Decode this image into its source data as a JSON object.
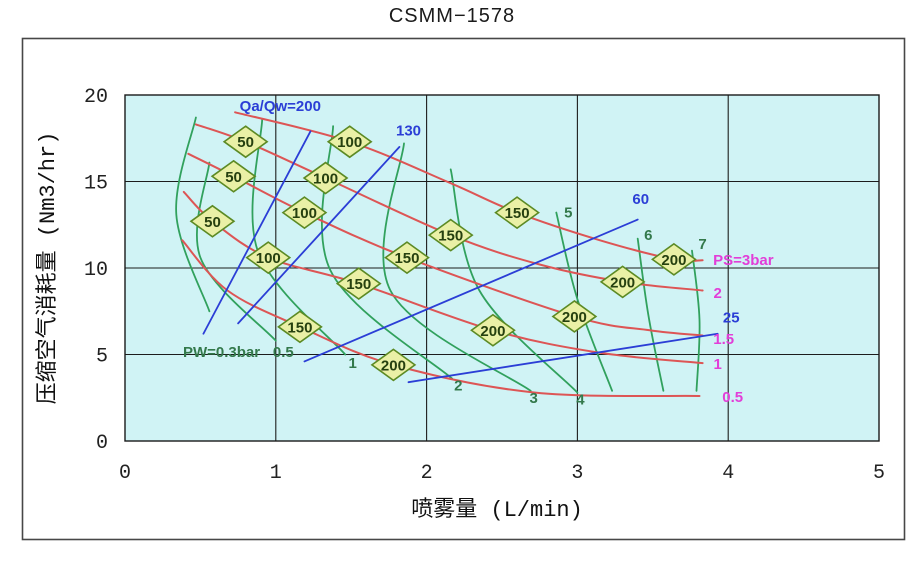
{
  "chart_data": {
    "type": "line",
    "title": "CSMM−1578",
    "xlabel": "喷雾量 (L/min)",
    "ylabel": "压缩空气消耗量 (Nm3/hr)",
    "xlim": [
      0,
      5
    ],
    "ylim": [
      0,
      20
    ],
    "x_ticks": [
      "0",
      "1",
      "2",
      "3",
      "4",
      "5"
    ],
    "y_ticks": [
      "0",
      "5",
      "10",
      "15",
      "20"
    ],
    "grid": true,
    "legend_position": "none",
    "colors": {
      "plot_bg": "#d0f3f5",
      "grid": "#1c1c1c",
      "red": "#dd5555",
      "green": "#31a15d",
      "blue": "#2b3ed6",
      "magenta": "#e23ed8",
      "green_text": "#33794b",
      "marker_fill": "#eaf0a6",
      "marker_stroke": "#5c8a24",
      "marker_text": "#26400f"
    },
    "series": [
      {
        "group": "air-pressure",
        "label": "PS=3bar",
        "color": "red",
        "points": [
          [
            0.73,
            19.0
          ],
          [
            1.49,
            17.3
          ],
          [
            2.16,
            14.9
          ],
          [
            2.6,
            13.2
          ],
          [
            3.15,
            11.6
          ],
          [
            3.64,
            10.5
          ],
          [
            3.83,
            10.45
          ]
        ]
      },
      {
        "group": "air-pressure",
        "label": "PS=2bar",
        "color": "red",
        "points": [
          [
            0.47,
            18.3
          ],
          [
            0.8,
            17.3
          ],
          [
            1.33,
            15.2
          ],
          [
            2.16,
            11.9
          ],
          [
            2.75,
            10.2
          ],
          [
            3.3,
            9.2
          ],
          [
            3.83,
            8.7
          ]
        ]
      },
      {
        "group": "air-pressure",
        "label": "PS=1.5bar",
        "color": "red",
        "points": [
          [
            0.42,
            16.6
          ],
          [
            0.72,
            15.3
          ],
          [
            1.19,
            13.2
          ],
          [
            1.87,
            10.6
          ],
          [
            2.98,
            7.2
          ],
          [
            3.48,
            6.4
          ],
          [
            3.83,
            6.1
          ]
        ]
      },
      {
        "group": "air-pressure",
        "label": "PS=1bar",
        "color": "red",
        "points": [
          [
            0.39,
            14.4
          ],
          [
            0.58,
            12.7
          ],
          [
            0.95,
            10.6
          ],
          [
            1.55,
            9.1
          ],
          [
            2.44,
            6.4
          ],
          [
            3.15,
            5.1
          ],
          [
            3.83,
            4.5
          ]
        ]
      },
      {
        "group": "air-pressure",
        "label": "PS=0.5bar",
        "color": "red",
        "points": [
          [
            0.38,
            11.6
          ],
          [
            0.68,
            8.7
          ],
          [
            1.16,
            6.6
          ],
          [
            1.78,
            4.4
          ],
          [
            2.72,
            2.8
          ],
          [
            3.81,
            2.6
          ]
        ]
      },
      {
        "group": "water-pressure",
        "label": "PW=0.3bar",
        "color": "green",
        "points": [
          [
            0.47,
            18.7
          ],
          [
            0.34,
            13.1
          ],
          [
            0.56,
            7.5
          ]
        ]
      },
      {
        "group": "water-pressure",
        "label": "PW=0.5bar",
        "color": "green",
        "points": [
          [
            0.56,
            16.1
          ],
          [
            0.5,
            10.6
          ],
          [
            1.0,
            5.8
          ]
        ]
      },
      {
        "group": "water-pressure",
        "label": "PW=1bar",
        "color": "green",
        "points": [
          [
            0.91,
            18.6
          ],
          [
            0.88,
            11.0
          ],
          [
            1.46,
            5.0
          ]
        ]
      },
      {
        "group": "water-pressure",
        "label": "PW=2bar",
        "color": "green",
        "points": [
          [
            1.38,
            18.2
          ],
          [
            1.36,
            9.9
          ],
          [
            2.17,
            3.6
          ]
        ]
      },
      {
        "group": "water-pressure",
        "label": "PW=3bar",
        "color": "green",
        "points": [
          [
            1.85,
            17.2
          ],
          [
            1.76,
            8.7
          ],
          [
            2.69,
            2.9
          ]
        ]
      },
      {
        "group": "water-pressure",
        "label": "PW=4bar",
        "color": "green",
        "points": [
          [
            2.16,
            15.7
          ],
          [
            2.35,
            8.7
          ],
          [
            3.0,
            2.8
          ]
        ]
      },
      {
        "group": "water-pressure",
        "label": "PW=5bar",
        "color": "green",
        "points": [
          [
            2.86,
            13.2
          ],
          [
            3.0,
            8.2
          ],
          [
            3.23,
            2.9
          ]
        ]
      },
      {
        "group": "water-pressure",
        "label": "PW=6bar",
        "color": "green",
        "points": [
          [
            3.4,
            11.7
          ],
          [
            3.47,
            7.3
          ],
          [
            3.57,
            2.9
          ]
        ]
      },
      {
        "group": "water-pressure",
        "label": "PW=7bar",
        "color": "green",
        "points": [
          [
            3.76,
            11.0
          ],
          [
            3.81,
            7.0
          ],
          [
            3.79,
            2.9
          ]
        ]
      },
      {
        "group": "air-water-ratio",
        "label": "Qa/Qw=200",
        "color": "blue",
        "points": [
          [
            0.52,
            6.2
          ],
          [
            1.23,
            17.9
          ]
        ]
      },
      {
        "group": "air-water-ratio",
        "label": "Qa/Qw=130",
        "color": "blue",
        "points": [
          [
            0.75,
            6.8
          ],
          [
            1.82,
            17.0
          ]
        ]
      },
      {
        "group": "air-water-ratio",
        "label": "Qa/Qw=60",
        "color": "blue",
        "points": [
          [
            1.19,
            4.6
          ],
          [
            3.4,
            12.8
          ]
        ]
      },
      {
        "group": "air-water-ratio",
        "label": "Qa/Qw=25",
        "color": "blue",
        "points": [
          [
            1.88,
            3.4
          ],
          [
            3.93,
            6.2
          ]
        ]
      }
    ],
    "markers": [
      {
        "value": "50",
        "x": 0.8,
        "y": 17.3
      },
      {
        "value": "50",
        "x": 0.72,
        "y": 15.3
      },
      {
        "value": "50",
        "x": 0.58,
        "y": 12.7
      },
      {
        "value": "100",
        "x": 1.49,
        "y": 17.3
      },
      {
        "value": "100",
        "x": 1.33,
        "y": 15.2
      },
      {
        "value": "100",
        "x": 1.19,
        "y": 13.2
      },
      {
        "value": "100",
        "x": 0.95,
        "y": 10.6
      },
      {
        "value": "150",
        "x": 2.6,
        "y": 13.2
      },
      {
        "value": "150",
        "x": 2.16,
        "y": 11.9
      },
      {
        "value": "150",
        "x": 1.87,
        "y": 10.6
      },
      {
        "value": "150",
        "x": 1.55,
        "y": 9.1
      },
      {
        "value": "150",
        "x": 1.16,
        "y": 6.6
      },
      {
        "value": "200",
        "x": 3.64,
        "y": 10.5
      },
      {
        "value": "200",
        "x": 3.3,
        "y": 9.2
      },
      {
        "value": "200",
        "x": 2.98,
        "y": 7.2
      },
      {
        "value": "200",
        "x": 2.44,
        "y": 6.4
      },
      {
        "value": "200",
        "x": 1.78,
        "y": 4.4
      }
    ],
    "annotations": [
      {
        "text": "Qa/Qw=200",
        "x": 1.03,
        "y": 19.35,
        "color": "blue",
        "anchor": "middle"
      },
      {
        "text": "130",
        "x": 1.88,
        "y": 17.95,
        "color": "blue",
        "anchor": "middle"
      },
      {
        "text": "60",
        "x": 3.42,
        "y": 14.0,
        "color": "blue",
        "anchor": "middle"
      },
      {
        "text": "25",
        "x": 4.02,
        "y": 7.15,
        "color": "blue",
        "anchor": "middle"
      },
      {
        "text": "PS=3bar",
        "x": 3.9,
        "y": 10.45,
        "color": "magenta",
        "anchor": "start"
      },
      {
        "text": "2",
        "x": 3.93,
        "y": 8.55,
        "color": "magenta",
        "anchor": "middle"
      },
      {
        "text": "1.5",
        "x": 3.97,
        "y": 5.9,
        "color": "magenta",
        "anchor": "middle"
      },
      {
        "text": "1",
        "x": 3.93,
        "y": 4.45,
        "color": "magenta",
        "anchor": "middle"
      },
      {
        "text": "0.5",
        "x": 4.03,
        "y": 2.55,
        "color": "magenta",
        "anchor": "middle"
      },
      {
        "text": "PW=0.3bar",
        "x": 0.64,
        "y": 5.15,
        "color": "green_text",
        "anchor": "middle"
      },
      {
        "text": "0.5",
        "x": 1.05,
        "y": 5.15,
        "color": "green_text",
        "anchor": "middle"
      },
      {
        "text": "1",
        "x": 1.51,
        "y": 4.5,
        "color": "green_text",
        "anchor": "middle"
      },
      {
        "text": "2",
        "x": 2.21,
        "y": 3.2,
        "color": "green_text",
        "anchor": "middle"
      },
      {
        "text": "3",
        "x": 2.71,
        "y": 2.5,
        "color": "green_text",
        "anchor": "middle"
      },
      {
        "text": "4",
        "x": 3.02,
        "y": 2.4,
        "color": "green_text",
        "anchor": "middle"
      },
      {
        "text": "5",
        "x": 2.94,
        "y": 13.2,
        "color": "green_text",
        "anchor": "middle"
      },
      {
        "text": "6",
        "x": 3.47,
        "y": 11.9,
        "color": "green_text",
        "anchor": "middle"
      },
      {
        "text": "7",
        "x": 3.83,
        "y": 11.4,
        "color": "green_text",
        "anchor": "middle"
      }
    ]
  }
}
